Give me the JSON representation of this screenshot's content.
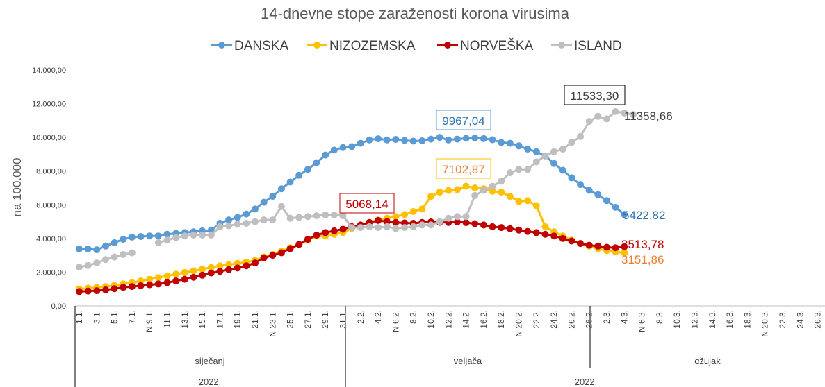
{
  "chart_data": {
    "type": "line",
    "title": "14-dnevne stope zaraženosti korona virusima",
    "ylabel": "na 100.000",
    "ylim": [
      0,
      14000
    ],
    "yticks": [
      "0,00",
      "2.000,00",
      "4.000,00",
      "6.000,00",
      "8.000,00",
      "10.000,00",
      "12.000,00",
      "14.000,00"
    ],
    "grid": false,
    "legend_position": "top",
    "x_tick_labels": [
      "1.1.",
      "3.1.",
      "5.1.",
      "7.1.",
      "N 9.1.",
      "11.1.",
      "13.1.",
      "15.1.",
      "17.1.",
      "19.1.",
      "21.1.",
      "N 23.1.",
      "25.1.",
      "27.1.",
      "29.1.",
      "31.1.",
      "2.2.",
      "4.2.",
      "N 6.2.",
      "8.2.",
      "10.2.",
      "12.2.",
      "14.2.",
      "16.2.",
      "18.2.",
      "N 20.2.",
      "22.2.",
      "24.2.",
      "26.2.",
      "28.2.",
      "2.3.",
      "4.3.",
      "N 6.3.",
      "8.3.",
      "10.3.",
      "12.3.",
      "14.3.",
      "16.3.",
      "18.3.",
      "N 20.3.",
      "22.3.",
      "24.3.",
      "26.3."
    ],
    "months": [
      "siječanj",
      "veljača",
      "ožujak"
    ],
    "years": [
      "2022.",
      "2022."
    ],
    "series": [
      {
        "name": "DANSKA",
        "color": "#5B9BD5",
        "values": [
          3380,
          3380,
          3330,
          3550,
          3750,
          3950,
          4080,
          4120,
          4150,
          4150,
          4250,
          4300,
          4350,
          4400,
          4450,
          4480,
          4900,
          5100,
          5250,
          5450,
          5750,
          6150,
          6500,
          6950,
          7350,
          7750,
          8100,
          8500,
          8950,
          9250,
          9400,
          9450,
          9650,
          9850,
          9920,
          9850,
          9880,
          9820,
          9780,
          9800,
          9900,
          10000,
          9850,
          9900,
          9950,
          9967.04,
          9930,
          9860,
          9700,
          9650,
          9500,
          9300,
          9150,
          8900,
          8450,
          8050,
          7600,
          7200,
          6850,
          6600,
          6250,
          5850,
          5422.82
        ]
      },
      {
        "name": "NIZOZEMSKA",
        "color": "#FFC000",
        "values": [
          1000,
          1050,
          1100,
          1150,
          1220,
          1300,
          1380,
          1480,
          1580,
          1680,
          1780,
          1880,
          1980,
          2080,
          2180,
          2280,
          2380,
          2450,
          2520,
          2600,
          2700,
          2900,
          3050,
          3250,
          3450,
          3650,
          3900,
          4150,
          4150,
          4250,
          4350,
          4600,
          4800,
          4950,
          5100,
          5200,
          5300,
          5420,
          5600,
          5750,
          6500,
          6750,
          6850,
          6900,
          7102.87,
          7000,
          6950,
          6800,
          6750,
          6500,
          6200,
          6250,
          5950,
          4700,
          4400,
          4150,
          3900,
          3700,
          3550,
          3400,
          3280,
          3200,
          3151.86
        ]
      },
      {
        "name": "NORVEŠKA",
        "color": "#C00000",
        "values": [
          850,
          880,
          900,
          950,
          1020,
          1100,
          1150,
          1200,
          1250,
          1300,
          1380,
          1480,
          1580,
          1700,
          1820,
          1950,
          2050,
          2150,
          2250,
          2380,
          2550,
          2850,
          3000,
          3150,
          3400,
          3650,
          3950,
          4200,
          4350,
          4450,
          4550,
          4700,
          4800,
          4950,
          5068.14,
          5000,
          4950,
          4920,
          4900,
          4950,
          4980,
          4960,
          4950,
          4980,
          4940,
          4880,
          4800,
          4700,
          4650,
          4580,
          4500,
          4420,
          4350,
          4250,
          4150,
          4000,
          3850,
          3700,
          3600,
          3550,
          3480,
          3450,
          3513.78
        ]
      },
      {
        "name": "ISLAND",
        "color": "#BFBFBF",
        "values": [
          2300,
          2400,
          2550,
          2750,
          2900,
          3050,
          3150,
          null,
          null,
          3750,
          3900,
          4050,
          4150,
          4200,
          4200,
          4200,
          4700,
          4750,
          4850,
          4900,
          5000,
          5100,
          5100,
          5900,
          5200,
          5250,
          5300,
          5350,
          5400,
          5400,
          5350,
          4650,
          4650,
          4700,
          4650,
          4700,
          4600,
          4650,
          4700,
          4800,
          4800,
          5000,
          5200,
          5300,
          5300,
          6550,
          6850,
          7100,
          7400,
          7900,
          8100,
          8100,
          8550,
          8900,
          9150,
          9300,
          9700,
          10050,
          10950,
          11250,
          11100,
          11533.3,
          11450,
          11358.66
        ]
      }
    ],
    "annotations": [
      {
        "text": "9967,04",
        "series": "DANSKA",
        "boxed": true
      },
      {
        "text": "5068,14",
        "series": "NORVEŠKA",
        "boxed": true
      },
      {
        "text": "7102,87",
        "series": "NIZOZEMSKA",
        "boxed": true
      },
      {
        "text": "11533,30",
        "series": "ISLAND",
        "boxed": true
      },
      {
        "text": "11358,66",
        "series": "ISLAND",
        "boxed": false
      },
      {
        "text": "5422,82",
        "series": "DANSKA",
        "boxed": false
      },
      {
        "text": "3513,78",
        "series": "NORVEŠKA",
        "boxed": false
      },
      {
        "text": "3151,86",
        "series": "NIZOZEMSKA",
        "boxed": false
      }
    ]
  }
}
